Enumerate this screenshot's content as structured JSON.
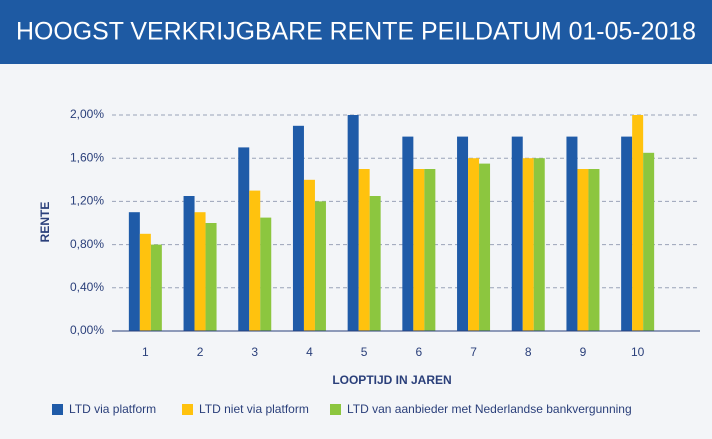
{
  "chart_data": {
    "type": "bar",
    "title": "HOOGST VERKRIJGBARE RENTE PEILDATUM 01-05-2018",
    "y_label": "RENTE",
    "x_label": "LOOPTIJD IN JAREN",
    "categories": [
      "1",
      "2",
      "3",
      "4",
      "5",
      "6",
      "7",
      "8",
      "9",
      "10"
    ],
    "series": [
      {
        "name": "LTD via platform",
        "color": "#1f5ba8",
        "values": [
          1.1,
          1.25,
          1.7,
          1.9,
          2.0,
          1.8,
          1.8,
          1.8,
          1.8,
          1.8
        ]
      },
      {
        "name": "LTD niet via platform",
        "color": "#ffc20e",
        "values": [
          0.9,
          1.1,
          1.3,
          1.4,
          1.5,
          1.5,
          1.6,
          1.6,
          1.5,
          2.0
        ]
      },
      {
        "name": "LTD van aanbieder met Nederlandse bankvergunning",
        "color": "#8cc63f",
        "values": [
          0.8,
          1.0,
          1.05,
          1.2,
          1.25,
          1.5,
          1.55,
          1.6,
          1.5,
          1.65
        ]
      }
    ],
    "ylim": [
      0,
      2
    ],
    "yticks": [
      {
        "value": 0,
        "label": "0,00%"
      },
      {
        "value": 0.4,
        "label": "0,40%"
      },
      {
        "value": 0.8,
        "label": "0,80%"
      },
      {
        "value": 1.2,
        "label": "1,20%"
      },
      {
        "value": 1.6,
        "label": "1,60%"
      },
      {
        "value": 2,
        "label": "2,00%"
      }
    ],
    "grid": true
  }
}
